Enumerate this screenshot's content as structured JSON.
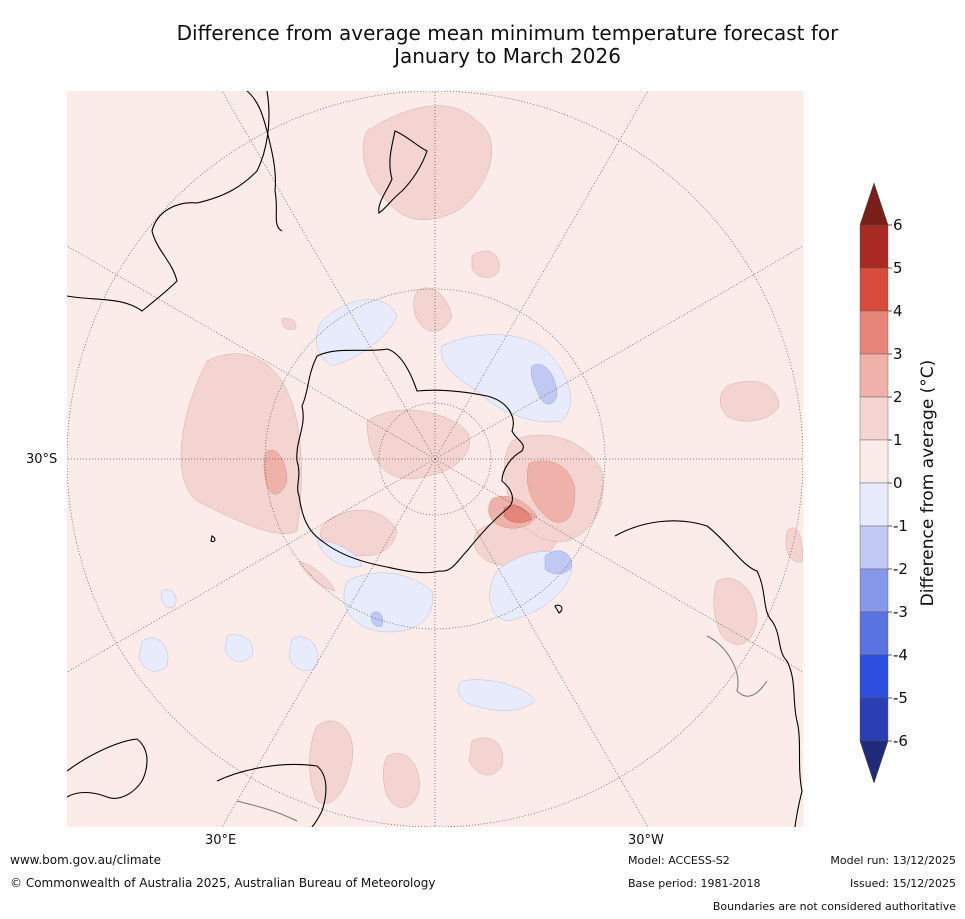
{
  "title": {
    "line1": "Difference from average mean minimum temperature forecast for",
    "line2": "January to March 2026"
  },
  "map": {
    "projection": "south-polar-stereographic",
    "lat_label": "30°S",
    "lon_labels": {
      "east": "30°E",
      "west": "30°W"
    },
    "land_color": "#000000"
  },
  "legend": {
    "title": "Difference from average (°C)",
    "ticks": [
      "6",
      "5",
      "4",
      "3",
      "2",
      "1",
      "0",
      "-1",
      "-2",
      "-3",
      "-4",
      "-5",
      "-6"
    ],
    "bins": [
      {
        "range": "5 to 6",
        "color": "#a82a22"
      },
      {
        "range": "4 to 5",
        "color": "#d94b3d"
      },
      {
        "range": "3 to 4",
        "color": "#e8857a"
      },
      {
        "range": "2 to 3",
        "color": "#efb2aa"
      },
      {
        "range": "1 to 2",
        "color": "#f4d4d1"
      },
      {
        "range": "0 to 1",
        "color": "#fbebe9"
      },
      {
        "range": "-1 to 0",
        "color": "#e7ebfb"
      },
      {
        "range": "-2 to -1",
        "color": "#c0c8f3"
      },
      {
        "range": "-3 to -2",
        "color": "#8797ea"
      },
      {
        "range": "-4 to -3",
        "color": "#5a73e3"
      },
      {
        "range": "-5 to -4",
        "color": "#2f4fe0"
      },
      {
        "range": "-6 to -5",
        "color": "#2a3fb3"
      }
    ],
    "over_color": "#7a1e18",
    "under_color": "#1f2b7a"
  },
  "footer": {
    "website": "www.bom.gov.au/climate",
    "copyright": "© Commonwealth of Australia 2025, Australian Bureau of Meteorology",
    "model": "Model: ACCESS-S2",
    "base_period": "Base period: 1981-2018",
    "model_run": "Model run: 13/12/2025",
    "issued": "Issued: 15/12/2025",
    "disclaimer": "Boundaries are not considered authoritative"
  }
}
